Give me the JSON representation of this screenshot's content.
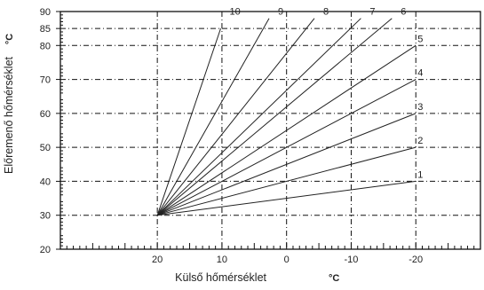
{
  "chart_data": {
    "type": "line",
    "xlabel": "Külső hőmérséklet",
    "xlabel_unit": "°C",
    "ylabel": "Előremenő hőmérséklet",
    "ylabel_unit": "°C",
    "xlim": [
      35,
      -30
    ],
    "ylim": [
      20,
      90
    ],
    "x_ticks": [
      20,
      10,
      0,
      -10,
      -20
    ],
    "x_tick_labels": [
      "20",
      "10",
      "0",
      "-10",
      "-20"
    ],
    "y_ticks": [
      20,
      30,
      40,
      50,
      60,
      70,
      80,
      85,
      90
    ],
    "y_tick_labels": [
      "20",
      "30",
      "40",
      "50",
      "60",
      "70",
      "80",
      "85",
      "90"
    ],
    "grid": true,
    "series": [
      {
        "name": "1",
        "x": [
          20,
          -20
        ],
        "y": [
          30,
          40
        ]
      },
      {
        "name": "2",
        "x": [
          20,
          -20
        ],
        "y": [
          30,
          50
        ]
      },
      {
        "name": "3",
        "x": [
          20,
          -20
        ],
        "y": [
          30,
          60
        ]
      },
      {
        "name": "4",
        "x": [
          20,
          -20
        ],
        "y": [
          30,
          70
        ]
      },
      {
        "name": "5",
        "x": [
          20,
          -20
        ],
        "y": [
          30,
          80
        ]
      },
      {
        "name": "6",
        "x": [
          20,
          -16.3
        ],
        "y": [
          30,
          88
        ]
      },
      {
        "name": "7",
        "x": [
          20,
          -11.5
        ],
        "y": [
          30,
          88
        ]
      },
      {
        "name": "8",
        "x": [
          20,
          -4.3
        ],
        "y": [
          30,
          88
        ]
      },
      {
        "name": "9",
        "x": [
          20,
          2.7
        ],
        "y": [
          30,
          88
        ]
      },
      {
        "name": "10",
        "x": [
          20,
          10.2
        ],
        "y": [
          30,
          85
        ]
      }
    ]
  }
}
